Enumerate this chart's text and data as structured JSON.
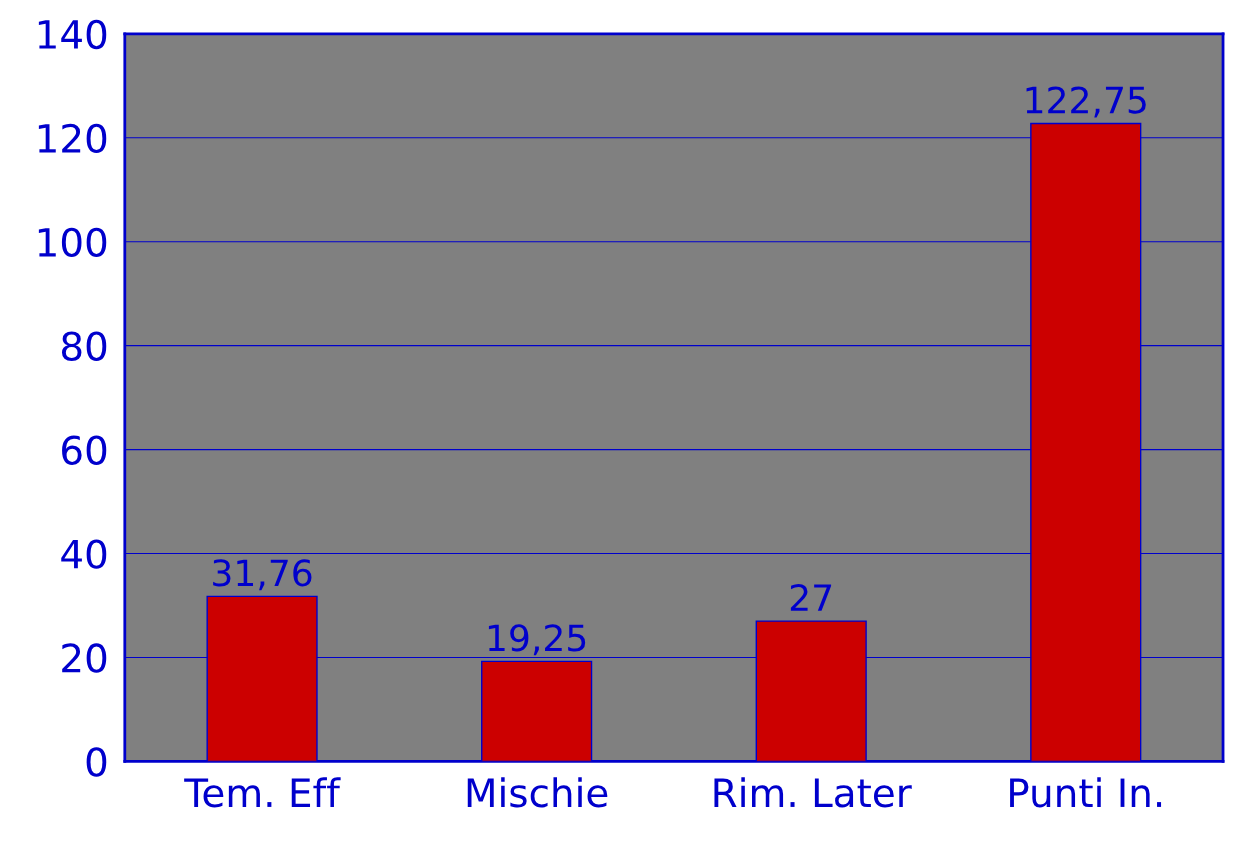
{
  "chart_data": {
    "type": "bar",
    "categories": [
      "Tem. Eff",
      "Mischie",
      "Rim. Later",
      "Punti In."
    ],
    "values": [
      31.76,
      19.25,
      27,
      122.75
    ],
    "value_labels": [
      "31,76",
      "19,25",
      "27",
      "122,75"
    ],
    "color": "#cc0000",
    "ylim": [
      0,
      140
    ],
    "yticks": [
      0,
      20,
      40,
      60,
      80,
      100,
      120,
      140
    ],
    "grid": "y"
  }
}
